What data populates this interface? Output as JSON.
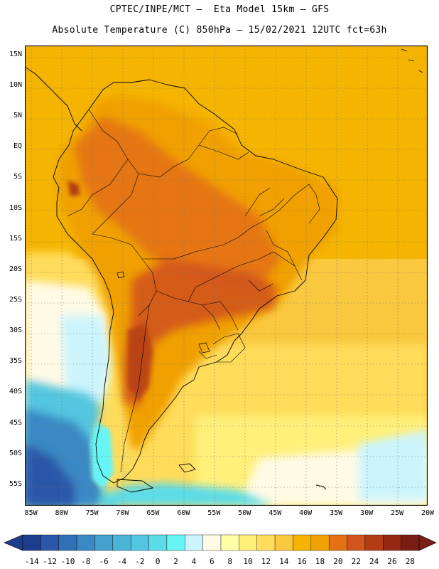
{
  "title": {
    "line1": "CPTEC/INPE/MCT –  Eta Model 15km – GFS",
    "line2": "Absolute Temperature (C) 850hPa – 15/02/2021 12UTC fct=63h"
  },
  "map": {
    "lat_labels": [
      "15N",
      "10N",
      "5N",
      "EQ",
      "5S",
      "10S",
      "15S",
      "20S",
      "25S",
      "30S",
      "35S",
      "40S",
      "45S",
      "50S",
      "55S"
    ],
    "lon_labels": [
      "85W",
      "80W",
      "75W",
      "70W",
      "65W",
      "60W",
      "55W",
      "50W",
      "45W",
      "40W",
      "35W",
      "30W",
      "25W",
      "20W"
    ],
    "lat_range": [
      16.5,
      -58.5
    ],
    "lon_range": [
      -86,
      -20
    ],
    "fields": {
      "warm_core_south_america": 22,
      "land_interior": 20,
      "ocean_tropics": 18,
      "south_atlantic": 14,
      "patagonia_cold": -10
    }
  },
  "colorbar": {
    "labels": [
      "-14",
      "-12",
      "-10",
      "-8",
      "-6",
      "-4",
      "-2",
      "0",
      "2",
      "4",
      "6",
      "8",
      "10",
      "12",
      "14",
      "16",
      "18",
      "20",
      "22",
      "24",
      "26",
      "28"
    ],
    "colors": [
      "#1e3c8c",
      "#2a57a8",
      "#3070b4",
      "#3a88c4",
      "#44a0cc",
      "#4ab4d6",
      "#52c6e0",
      "#5cdce8",
      "#66f4f4",
      "#ccf4fc",
      "#fffae6",
      "#ffffa8",
      "#fff07a",
      "#ffdc5a",
      "#fac83e",
      "#f5b400",
      "#f0a000",
      "#e47214",
      "#d2541e",
      "#b43c14",
      "#962814",
      "#781e14"
    ],
    "low_end_color": "#1e3c8c",
    "high_end_color": "#781e14"
  }
}
